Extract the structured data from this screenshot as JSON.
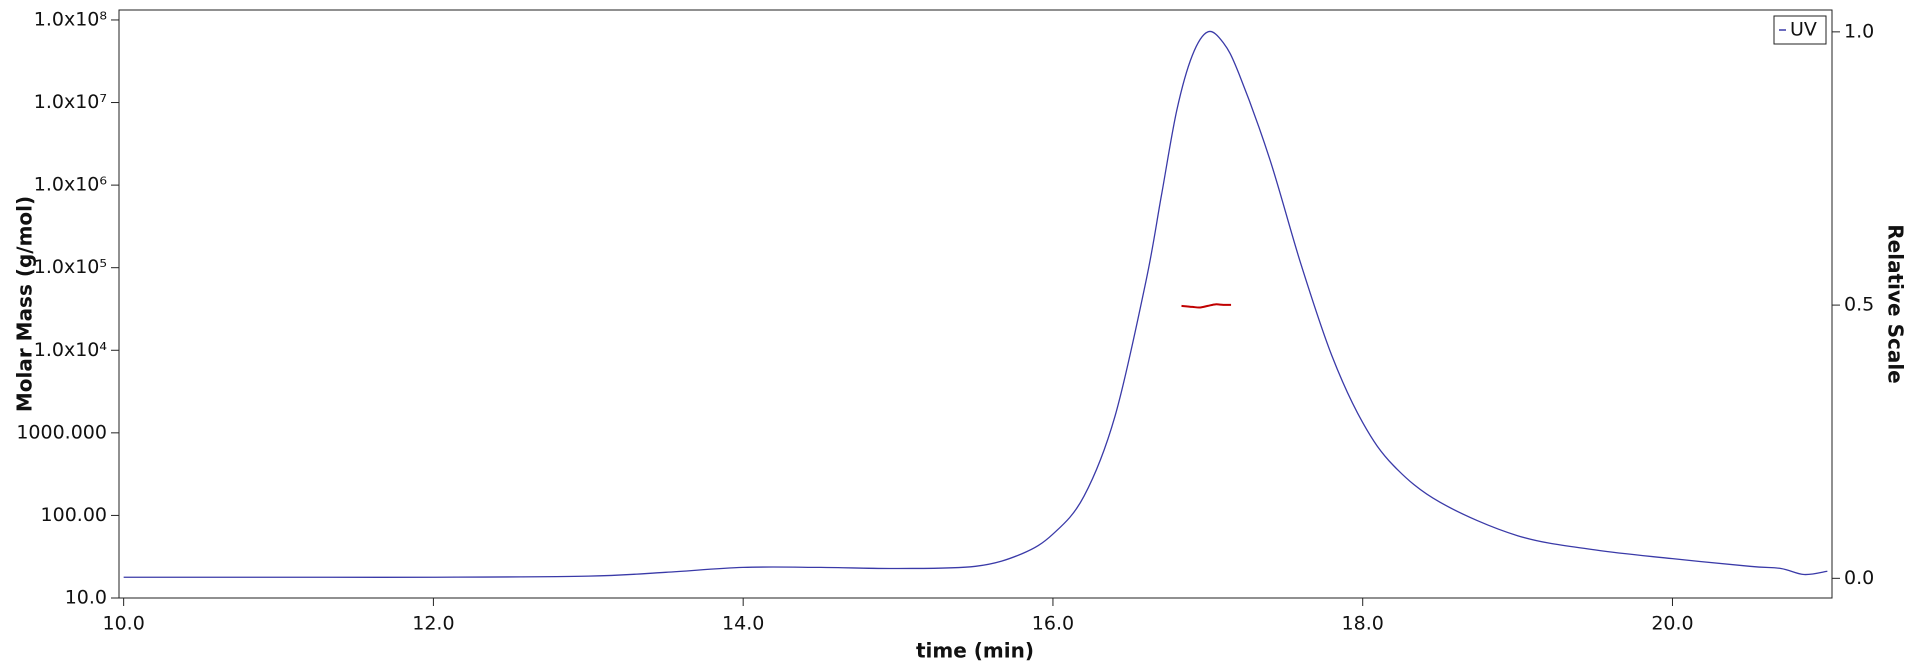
{
  "chart_data": {
    "type": "line",
    "xlabel": "time (min)",
    "ylabel": "Molar Mass (g/mol)",
    "y2label": "Relative Scale",
    "xlim": [
      9.97,
      21.03
    ],
    "xticks": [
      {
        "value": 10,
        "label": "10.0"
      },
      {
        "value": 12,
        "label": "12.0"
      },
      {
        "value": 14,
        "label": "14.0"
      },
      {
        "value": 16,
        "label": "16.0"
      },
      {
        "value": 18,
        "label": "18.0"
      },
      {
        "value": 20,
        "label": "20.0"
      }
    ],
    "ylim": [
      10,
      132000000
    ],
    "yscale": "log",
    "yticks": [
      {
        "value": 10,
        "label": "10.0"
      },
      {
        "value": 100,
        "label": "100.00"
      },
      {
        "value": 1000,
        "label": "1000.000"
      },
      {
        "value": 10000,
        "label": "1.0x10⁴"
      },
      {
        "value": 100000,
        "label": "1.0x10⁵"
      },
      {
        "value": 1000000,
        "label": "1.0x10⁶"
      },
      {
        "value": 10000000,
        "label": "1.0x10⁷"
      },
      {
        "value": 100000000,
        "label": "1.0x10⁸"
      }
    ],
    "y2lim": [
      -0.036,
      1.04
    ],
    "y2ticks": [
      {
        "value": 0,
        "label": "0.0"
      },
      0.5,
      {
        "value": 1,
        "label": "1.0"
      }
    ],
    "legend": "upper right",
    "series": [
      {
        "name": "UV",
        "color": "#3a3aa8",
        "axis": "y2",
        "x": [
          10,
          11,
          12,
          13,
          13.5,
          14,
          14.5,
          15,
          15.5,
          15.8,
          16.0,
          16.2,
          16.4,
          16.6,
          16.7,
          16.8,
          16.9,
          17.0,
          17.1,
          17.2,
          17.4,
          17.6,
          17.8,
          18.0,
          18.2,
          18.5,
          19.0,
          19.5,
          20.0,
          20.5,
          20.7,
          20.85,
          21.0
        ],
        "values": [
          0.002,
          0.002,
          0.002,
          0.004,
          0.011,
          0.02,
          0.02,
          0.018,
          0.022,
          0.045,
          0.081,
          0.15,
          0.296,
          0.543,
          0.7,
          0.857,
          0.957,
          1.0,
          0.98,
          0.924,
          0.767,
          0.576,
          0.408,
          0.285,
          0.206,
          0.139,
          0.078,
          0.052,
          0.036,
          0.022,
          0.018,
          0.007,
          0.013
        ]
      },
      {
        "color": "#c00000",
        "axis": "y",
        "x": [
          16.83,
          16.9,
          16.95,
          17.0,
          17.05,
          17.1,
          17.15
        ],
        "values": [
          34500,
          33500,
          33000,
          34500,
          36000,
          35500,
          35500
        ]
      }
    ]
  }
}
